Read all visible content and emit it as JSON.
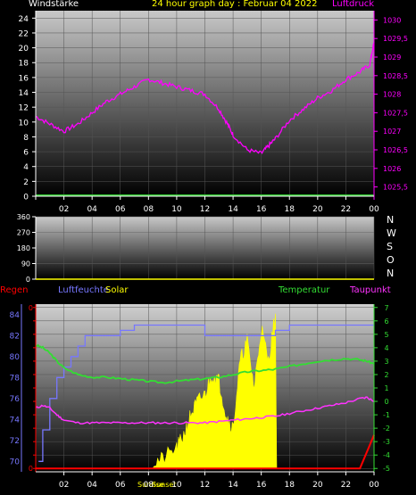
{
  "header": {
    "left_label": "Windstärke",
    "title": "24 hour graph day : Februar 04 2022",
    "right_label": "Luftdruck"
  },
  "wind_panel_labels": {
    "directions": [
      "N",
      "W",
      "S",
      "O",
      "N"
    ]
  },
  "bottom_labels": {
    "regen": "Regen",
    "luftfeuchte": "Luftfeuchte",
    "solar": "Solar",
    "temperatur": "Temperatur",
    "taupunkt": "Taupunkt",
    "sunrise": "Sunrise",
    "sunset": "Sunset"
  },
  "colors": {
    "pressure": "#ff00ff",
    "wind": "#33cc33",
    "humidity": "#7777ff",
    "solar": "#ffff00",
    "temperature": "#33dd33",
    "dewpoint": "#ff33ff",
    "rain": "#ff0000",
    "title": "#ffff00",
    "axis_text": "#ffffff"
  },
  "chart_data": [
    {
      "type": "line",
      "title": "24 hour graph day : Februar 04 2022",
      "x_ticks": [
        "02",
        "04",
        "06",
        "08",
        "10",
        "12",
        "14",
        "16",
        "18",
        "20",
        "22",
        "00"
      ],
      "y_left_label": "Windstärke",
      "y_left_ticks": [
        "0",
        "2",
        "4",
        "6",
        "8",
        "10",
        "12",
        "14",
        "16",
        "18",
        "20",
        "22",
        "24"
      ],
      "y_left_lim": [
        0,
        25
      ],
      "y_right_label": "Luftdruck",
      "y_right_ticks": [
        "1025,5",
        "1026",
        "1026,5",
        "1027",
        "1027,5",
        "1028",
        "1028,5",
        "1029",
        "1029,5",
        "1030"
      ],
      "y_right_lim": [
        1025.25,
        1030.25
      ],
      "series": [
        {
          "name": "Luftdruck",
          "axis": "right",
          "x": [
            0,
            1,
            2,
            3,
            4,
            5,
            6,
            7,
            8,
            9,
            10,
            11,
            12,
            13,
            13.6,
            14,
            15,
            16,
            16.5,
            17,
            18,
            19,
            20,
            21,
            22,
            23,
            23.7,
            24
          ],
          "values": [
            1027.4,
            1027.2,
            1027.0,
            1027.2,
            1027.5,
            1027.8,
            1028.0,
            1028.2,
            1028.4,
            1028.3,
            1028.2,
            1028.1,
            1028.0,
            1027.6,
            1027.2,
            1026.9,
            1026.5,
            1026.4,
            1026.6,
            1026.8,
            1027.3,
            1027.6,
            1027.9,
            1028.1,
            1028.4,
            1028.6,
            1028.8,
            1029.4
          ]
        },
        {
          "name": "Windstärke",
          "axis": "left",
          "x": [
            0,
            24
          ],
          "values": [
            0,
            0
          ]
        }
      ]
    },
    {
      "type": "line",
      "x_ticks": [],
      "y_ticks": [
        "0",
        "90",
        "180",
        "270",
        "360"
      ],
      "ylim": [
        0,
        360
      ],
      "series": []
    },
    {
      "type": "line",
      "x_ticks": [
        "02",
        "04",
        "06",
        "08",
        "10",
        "12",
        "14",
        "16",
        "18",
        "20",
        "22",
        "00"
      ],
      "y_left_ticks": [
        "70",
        "72",
        "74",
        "76",
        "78",
        "80",
        "82",
        "84"
      ],
      "y_left_lim": [
        69,
        85
      ],
      "y_temp_ticks": [
        "7",
        "6",
        "5",
        "4",
        "3",
        "2",
        "1",
        "0",
        "-1",
        "-2",
        "-3",
        "-4",
        "-5"
      ],
      "y_temp_lim": [
        -5.25,
        7.25
      ],
      "series": [
        {
          "name": "Luftfeuchte",
          "axis": "left",
          "x": [
            0.2,
            0.5,
            1,
            1.5,
            2,
            2.5,
            3,
            3.5,
            4,
            5,
            6,
            7,
            7.5,
            8,
            9,
            10,
            11,
            12,
            13,
            14,
            15,
            16,
            17,
            18,
            19,
            20,
            21,
            22,
            23,
            24
          ],
          "values": [
            70,
            73,
            76,
            78,
            79,
            80,
            81,
            82,
            82,
            82,
            82.5,
            83,
            83,
            83,
            83,
            83,
            83,
            82,
            82,
            82,
            82,
            82,
            82.5,
            83,
            83,
            83,
            83,
            83,
            83,
            83
          ]
        },
        {
          "name": "Temperatur",
          "axis": "right",
          "x": [
            0,
            0.5,
            1,
            1.5,
            2,
            3,
            4,
            5,
            6,
            7,
            8,
            9,
            10,
            11,
            12,
            13,
            14,
            15,
            16,
            17,
            18,
            19,
            20,
            21,
            22,
            23,
            23.5,
            24
          ],
          "values": [
            4.2,
            4.0,
            3.6,
            3.0,
            2.5,
            2.0,
            1.8,
            1.8,
            1.7,
            1.6,
            1.5,
            1.4,
            1.5,
            1.6,
            1.7,
            1.8,
            2.0,
            2.2,
            2.3,
            2.4,
            2.6,
            2.8,
            3.0,
            3.1,
            3.2,
            3.1,
            3.0,
            2.8
          ]
        },
        {
          "name": "Taupunkt",
          "axis": "right",
          "x": [
            0,
            0.5,
            1,
            1.5,
            2,
            3,
            4,
            5,
            6,
            7,
            8,
            9,
            10,
            11,
            12,
            13,
            14,
            15,
            16,
            17,
            18,
            19,
            20,
            21,
            22,
            23,
            23.5,
            24
          ],
          "values": [
            -0.5,
            -0.3,
            -0.5,
            -1.0,
            -1.4,
            -1.6,
            -1.6,
            -1.6,
            -1.6,
            -1.6,
            -1.6,
            -1.6,
            -1.6,
            -1.6,
            -1.6,
            -1.5,
            -1.4,
            -1.3,
            -1.2,
            -1.1,
            -0.9,
            -0.7,
            -0.5,
            -0.3,
            -0.1,
            0.2,
            0.3,
            0.0
          ]
        },
        {
          "name": "Solar",
          "axis": "right",
          "x": [
            8.3,
            9,
            10,
            10.5,
            11,
            11.5,
            12,
            12.5,
            13,
            13.5,
            14,
            14.5,
            15,
            15.5,
            16,
            16.5,
            17,
            17.1
          ],
          "values": [
            -4.6,
            -4.3,
            -3.5,
            -2.5,
            -1.0,
            0.0,
            0.5,
            2.0,
            1.5,
            -1.0,
            -2.0,
            3.0,
            4.5,
            1.0,
            5.5,
            3.0,
            6.5,
            -5.0
          ]
        },
        {
          "name": "Regen",
          "axis": "right",
          "x": [
            0,
            23,
            23.6,
            24
          ],
          "values": [
            -5.0,
            -5.0,
            -3.5,
            -2.5
          ]
        }
      ]
    }
  ]
}
